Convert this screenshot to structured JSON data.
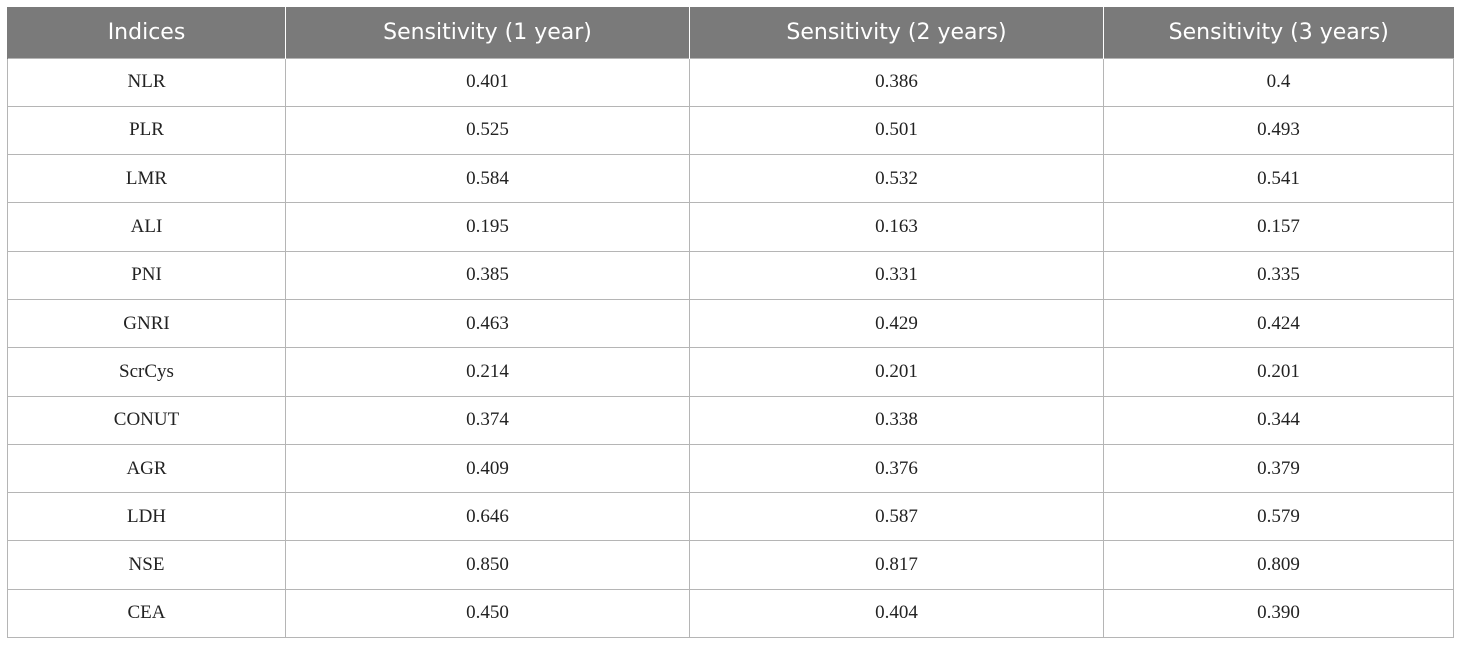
{
  "table": {
    "headers": [
      "Indices",
      "Sensitivity (1 year)",
      "Sensitivity (2 years)",
      "Sensitivity (3 years)"
    ],
    "rows": [
      [
        "NLR",
        "0.401",
        "0.386",
        "0.4"
      ],
      [
        "PLR",
        "0.525",
        "0.501",
        "0.493"
      ],
      [
        "LMR",
        "0.584",
        "0.532",
        "0.541"
      ],
      [
        "ALI",
        "0.195",
        "0.163",
        "0.157"
      ],
      [
        "PNI",
        "0.385",
        "0.331",
        "0.335"
      ],
      [
        "GNRI",
        "0.463",
        "0.429",
        "0.424"
      ],
      [
        "ScrCys",
        "0.214",
        "0.201",
        "0.201"
      ],
      [
        "CONUT",
        "0.374",
        "0.338",
        "0.344"
      ],
      [
        "AGR",
        "0.409",
        "0.376",
        "0.379"
      ],
      [
        "LDH",
        "0.646",
        "0.587",
        "0.579"
      ],
      [
        "NSE",
        "0.850",
        "0.817",
        "0.809"
      ],
      [
        "CEA",
        "0.450",
        "0.404",
        "0.390"
      ]
    ]
  },
  "colors": {
    "header_bg": "#7a7a7a",
    "header_text": "#ffffff",
    "grid": "#b5b5b5"
  }
}
